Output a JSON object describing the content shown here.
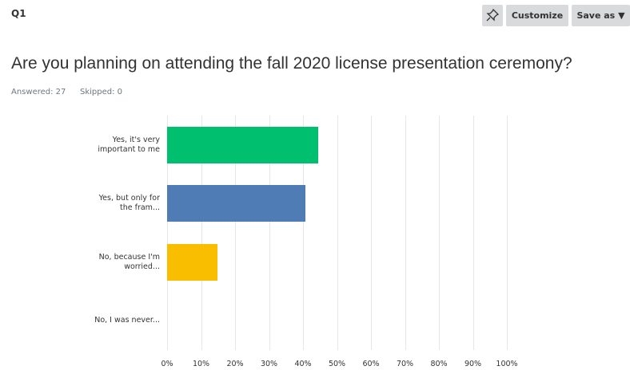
{
  "question_id": "Q1",
  "buttons": [
    "Customize",
    "Save as"
  ],
  "stats": [
    "Answered: 27",
    "Skipped: 0"
  ],
  "chart_data": {
    "type": "hbar",
    "title": "Are you planning on attending the fall 2020 license presentation ceremony?",
    "categories": [
      "Yes, it's very important to me",
      "Yes, but only for the fram...",
      "No, because I'm worried...",
      "No, I was never..."
    ],
    "values": [
      44.44,
      40.74,
      14.81,
      0
    ],
    "colors": [
      "#00bf6f",
      "#507cb6",
      "#f9be00",
      "#6bc8cd"
    ],
    "xlim": [
      0,
      100
    ],
    "xticks": [
      {
        "value": 0,
        "label": "0%"
      },
      {
        "value": 10,
        "label": "10%"
      },
      {
        "value": 20,
        "label": "20%"
      },
      {
        "value": 30,
        "label": "30%"
      },
      {
        "value": 40,
        "label": "40%"
      },
      {
        "value": 50,
        "label": "50%"
      },
      {
        "value": 60,
        "label": "60%"
      },
      {
        "value": 70,
        "label": "70%"
      },
      {
        "value": 80,
        "label": "80%"
      },
      {
        "value": 90,
        "label": "90%"
      },
      {
        "value": 100,
        "label": "100%"
      }
    ],
    "grid": true
  }
}
